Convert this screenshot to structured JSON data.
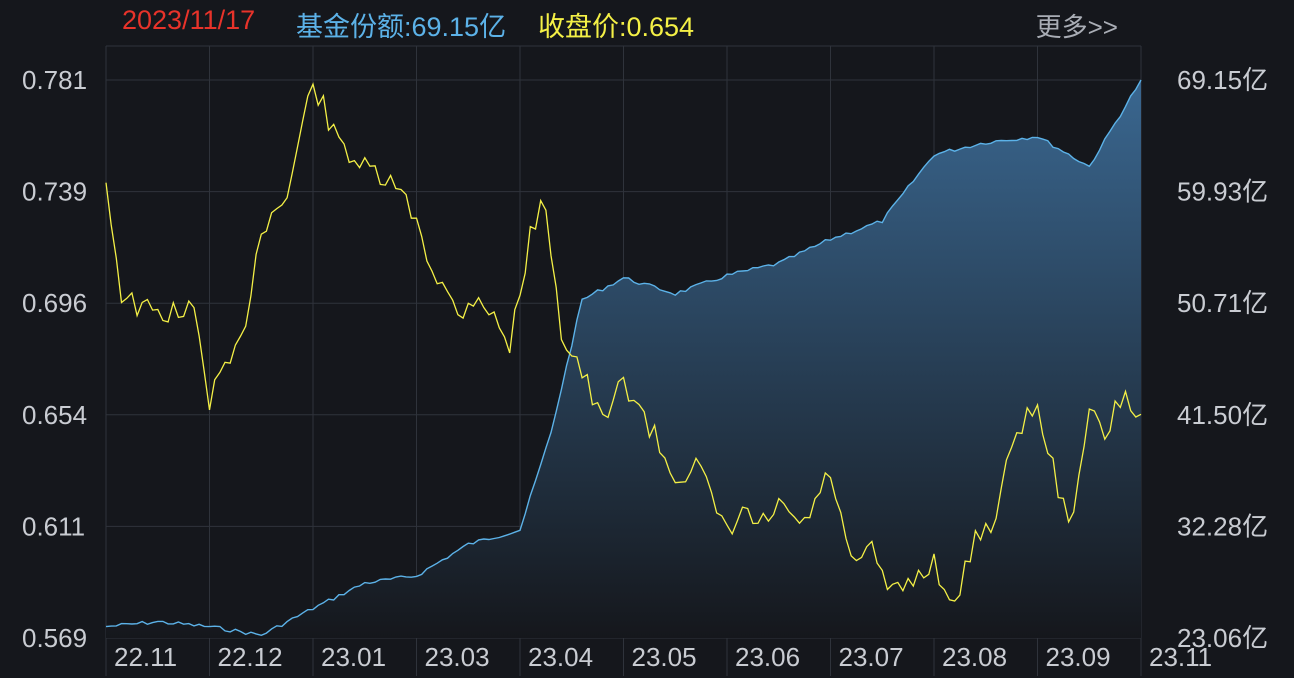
{
  "header": {
    "date": "2023/11/17",
    "share_text": "基金份额:69.15亿",
    "close_text": "收盘价:0.654",
    "more_label": "更多>>"
  },
  "colors": {
    "background": "#15171c",
    "grid": "#2f333b",
    "date": "#e8332a",
    "share": "#5cb2e8",
    "close": "#f4f046",
    "area_fill_top": "#3a6790",
    "area_fill_bottom": "#15171c"
  },
  "chart_data": {
    "type": "line",
    "x_ticks": [
      "22.11",
      "22.12",
      "23.01",
      "23.03",
      "23.04",
      "23.05",
      "23.06",
      "23.07",
      "23.08",
      "23.09",
      "23.11"
    ],
    "left_axis": {
      "ticks": [
        "0.781",
        "0.739",
        "0.696",
        "0.654",
        "0.611",
        "0.569"
      ],
      "ylim": [
        0.569,
        0.781
      ]
    },
    "right_axis": {
      "ticks": [
        "69.15亿",
        "59.93亿",
        "50.71亿",
        "41.50亿",
        "32.28亿",
        "23.06亿"
      ],
      "ylim": [
        23.06,
        69.15
      ]
    },
    "grid": true,
    "series": [
      {
        "name": "基金份额",
        "axis": "right",
        "style": "area",
        "color": "#5cb2e8",
        "x": [
          0,
          0.5,
          1,
          1.5,
          2,
          2.5,
          3,
          3.5,
          4,
          4.3,
          4.6,
          5,
          5.5,
          6,
          6.5,
          7,
          7.5,
          8,
          8.5,
          9,
          9.5,
          10
        ],
        "y": [
          24.0,
          24.4,
          24.0,
          23.3,
          25.5,
          27.6,
          28.2,
          30.8,
          32.0,
          40.0,
          51.0,
          52.8,
          51.5,
          53.0,
          54.0,
          56.0,
          57.5,
          63.0,
          64.0,
          64.5,
          62.0,
          69.15
        ]
      },
      {
        "name": "收盘价",
        "axis": "left",
        "style": "line",
        "color": "#f4f046",
        "x": [
          0,
          0.15,
          0.3,
          0.5,
          0.7,
          0.85,
          1,
          1.3,
          1.5,
          1.75,
          2,
          2.2,
          2.5,
          2.8,
          3,
          3.15,
          3.4,
          3.6,
          3.9,
          4.1,
          4.25,
          4.4,
          4.6,
          4.8,
          5,
          5.2,
          5.5,
          5.7,
          6,
          6.15,
          6.3,
          6.5,
          6.75,
          7,
          7.2,
          7.4,
          7.6,
          8,
          8.2,
          8.4,
          8.6,
          8.8,
          9,
          9.1,
          9.3,
          9.5,
          9.65,
          9.8,
          10
        ],
        "y": [
          0.742,
          0.7,
          0.695,
          0.692,
          0.693,
          0.693,
          0.66,
          0.68,
          0.725,
          0.737,
          0.781,
          0.76,
          0.747,
          0.74,
          0.728,
          0.71,
          0.692,
          0.7,
          0.68,
          0.722,
          0.735,
          0.685,
          0.67,
          0.65,
          0.667,
          0.653,
          0.63,
          0.635,
          0.608,
          0.617,
          0.611,
          0.618,
          0.612,
          0.632,
          0.596,
          0.602,
          0.585,
          0.598,
          0.58,
          0.608,
          0.615,
          0.65,
          0.655,
          0.642,
          0.61,
          0.655,
          0.645,
          0.66,
          0.654
        ]
      }
    ]
  }
}
